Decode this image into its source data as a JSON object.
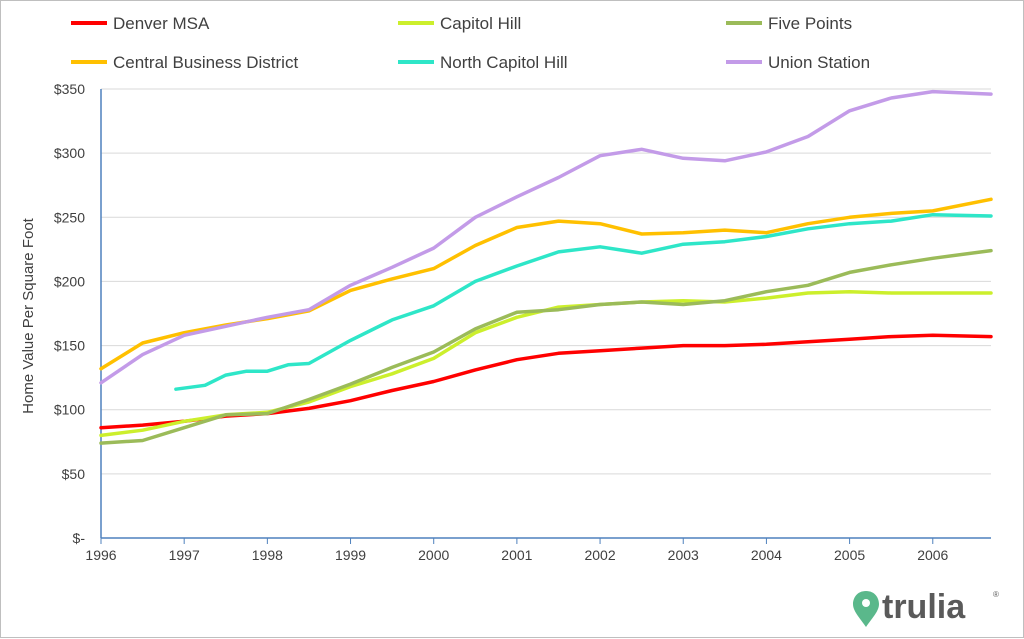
{
  "chart_data": {
    "type": "line",
    "title": "",
    "xlabel": "",
    "ylabel": "Home Value Per Square Foot",
    "ylim": [
      0,
      350
    ],
    "xlim": [
      1996,
      2006.7
    ],
    "y_ticks": [
      0,
      50,
      100,
      150,
      200,
      250,
      300,
      350
    ],
    "y_tick_labels": [
      "$-",
      "$50",
      "$100",
      "$150",
      "$200",
      "$250",
      "$300",
      "$350"
    ],
    "x_ticks": [
      1996,
      1997,
      1998,
      1999,
      2000,
      2001,
      2002,
      2003,
      2004,
      2005,
      2006
    ],
    "x_tick_labels": [
      "1996",
      "1997",
      "1998",
      "1999",
      "2000",
      "2001",
      "2002",
      "2003",
      "2004",
      "2005",
      "2006"
    ],
    "grid": "horizontal",
    "legend_position": "top",
    "series": [
      {
        "name": "Denver MSA",
        "color": "#ff0000",
        "x": [
          1996.0,
          1996.5,
          1997.0,
          1997.5,
          1998.0,
          1998.5,
          1999.0,
          1999.5,
          2000.0,
          2000.5,
          2001.0,
          2001.5,
          2002.0,
          2002.5,
          2003.0,
          2003.5,
          2004.0,
          2004.5,
          2005.0,
          2005.5,
          2006.0,
          2006.7
        ],
        "values": [
          86,
          88,
          91,
          95,
          97,
          101,
          107,
          115,
          122,
          131,
          139,
          144,
          146,
          148,
          150,
          150,
          151,
          153,
          155,
          157,
          158,
          157
        ]
      },
      {
        "name": "Capitol Hill",
        "color": "#ccef2c",
        "x": [
          1996.0,
          1996.5,
          1997.0,
          1997.5,
          1998.0,
          1998.5,
          1999.0,
          1999.5,
          2000.0,
          2000.5,
          2001.0,
          2001.5,
          2002.0,
          2002.5,
          2003.0,
          2003.5,
          2004.0,
          2004.5,
          2005.0,
          2005.5,
          2006.0,
          2006.7
        ],
        "values": [
          80,
          84,
          91,
          96,
          98,
          106,
          118,
          128,
          140,
          160,
          172,
          180,
          182,
          184,
          185,
          184,
          187,
          191,
          192,
          191,
          191,
          191
        ]
      },
      {
        "name": "Five Points",
        "color": "#9bbb59",
        "x": [
          1996.0,
          1996.5,
          1997.0,
          1997.5,
          1998.0,
          1998.5,
          1999.0,
          1999.5,
          2000.0,
          2000.5,
          2001.0,
          2001.5,
          2002.0,
          2002.5,
          2003.0,
          2003.5,
          2004.0,
          2004.5,
          2005.0,
          2005.5,
          2006.0,
          2006.7
        ],
        "values": [
          74,
          76,
          86,
          96,
          97,
          108,
          120,
          133,
          145,
          163,
          176,
          178,
          182,
          184,
          182,
          185,
          192,
          197,
          207,
          213,
          218,
          224
        ]
      },
      {
        "name": "Central Business District",
        "color": "#ffc000",
        "x": [
          1996.0,
          1996.5,
          1997.0,
          1997.5,
          1998.0,
          1998.5,
          1999.0,
          1999.5,
          2000.0,
          2000.5,
          2001.0,
          2001.5,
          2002.0,
          2002.5,
          2003.0,
          2003.5,
          2004.0,
          2004.5,
          2005.0,
          2005.5,
          2006.0,
          2006.7
        ],
        "values": [
          132,
          152,
          160,
          166,
          171,
          177,
          193,
          202,
          210,
          228,
          242,
          247,
          245,
          237,
          238,
          240,
          238,
          245,
          250,
          253,
          255,
          264
        ]
      },
      {
        "name": "North Capitol Hill",
        "color": "#2ee6c8",
        "x": [
          1996.9,
          1997.25,
          1997.5,
          1997.75,
          1998.0,
          1998.25,
          1998.5,
          1999.0,
          1999.5,
          2000.0,
          2000.5,
          2001.0,
          2001.5,
          2002.0,
          2002.5,
          2003.0,
          2003.5,
          2004.0,
          2004.5,
          2005.0,
          2005.5,
          2006.0,
          2006.7
        ],
        "values": [
          116,
          119,
          127,
          130,
          130,
          135,
          136,
          154,
          170,
          181,
          200,
          212,
          223,
          227,
          222,
          229,
          231,
          235,
          241,
          245,
          247,
          252,
          251
        ]
      },
      {
        "name": "Union Station",
        "color": "#c39be8",
        "x": [
          1996.0,
          1996.5,
          1997.0,
          1997.5,
          1998.0,
          1998.5,
          1999.0,
          1999.5,
          2000.0,
          2000.5,
          2001.0,
          2001.5,
          2002.0,
          2002.5,
          2003.0,
          2003.5,
          2004.0,
          2004.5,
          2005.0,
          2005.5,
          2006.0,
          2006.7
        ],
        "values": [
          121,
          143,
          158,
          165,
          172,
          178,
          197,
          211,
          226,
          250,
          266,
          281,
          298,
          303,
          296,
          294,
          301,
          313,
          333,
          343,
          348,
          346
        ]
      }
    ]
  },
  "brand": {
    "name": "trulia",
    "reg_mark": "®",
    "color": "#5ab88b"
  }
}
